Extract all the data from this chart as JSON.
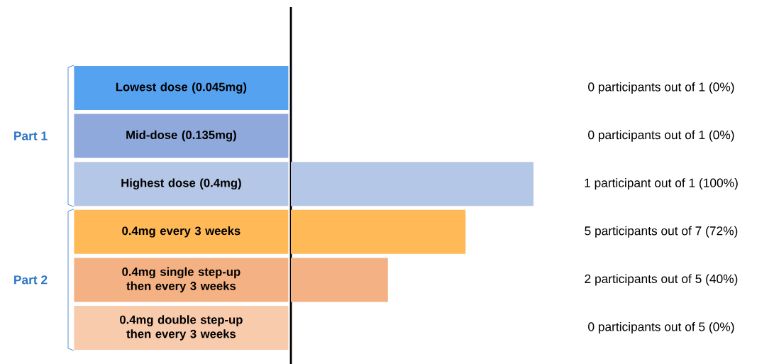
{
  "chart_data": {
    "type": "bar",
    "orientation": "horizontal",
    "categories": [
      "Lowest dose (0.045mg)",
      "Mid-dose (0.135mg)",
      "Highest dose (0.4mg)",
      "0.4mg every 3 weeks",
      "0.4mg single step-up then every 3 weeks",
      "0.4mg double step-up then every 3 weeks"
    ],
    "values": [
      0,
      0,
      100,
      72,
      40,
      0
    ],
    "colors": [
      "#55a2f0",
      "#8fa9dc",
      "#b4c7e7",
      "#ffb957",
      "#f4b183",
      "#f8cbad"
    ],
    "value_labels": [
      "0 participants out of 1 (0%)",
      "0 participants out of 1 (0%)",
      "1 participant out of 1 (100%)",
      "5 participants out of 7 (72%)",
      "2 participants out of 5 (40%)",
      "0 participants out of 5 (0%)"
    ],
    "annotations": [
      "Part 1",
      "Part 2"
    ]
  }
}
